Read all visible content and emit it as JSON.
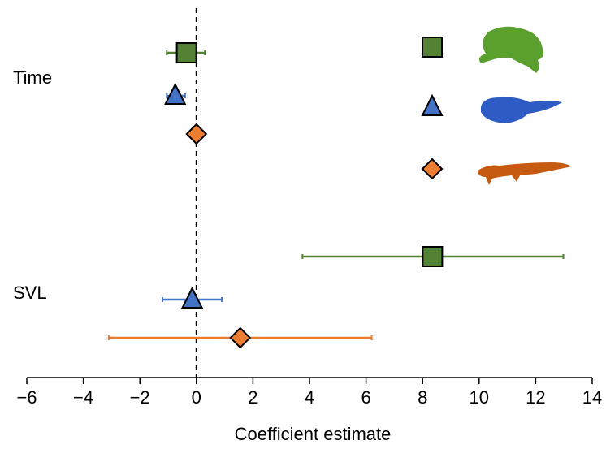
{
  "chart_data": {
    "type": "forest",
    "xlabel": "Coefficient estimate",
    "categories": [
      "Time",
      "SVL"
    ],
    "series": [
      {
        "color": "#548235",
        "marker": "square",
        "values": [
          -0.35,
          8.35
        ],
        "lower": [
          -1.05,
          3.75
        ],
        "upper": [
          0.3,
          12.98
        ]
      },
      {
        "color": "#4472c4",
        "marker": "triangle",
        "values": [
          -0.75,
          -0.15
        ],
        "lower": [
          -1.05,
          -1.2
        ],
        "upper": [
          -0.4,
          0.9
        ]
      },
      {
        "color": "#ed7d31",
        "marker": "diamond",
        "values": [
          0.0,
          1.55
        ],
        "lower": [
          0.0,
          -3.1
        ],
        "upper": [
          0.0,
          6.2
        ]
      }
    ],
    "xlim": [
      -6,
      14
    ],
    "xticks": [
      {
        "value": -6,
        "label": "−6"
      },
      {
        "value": -4,
        "label": "−4"
      },
      {
        "value": -2,
        "label": "−2"
      },
      0,
      2,
      4,
      6,
      8,
      10,
      12,
      14
    ],
    "reference_line": 0
  }
}
